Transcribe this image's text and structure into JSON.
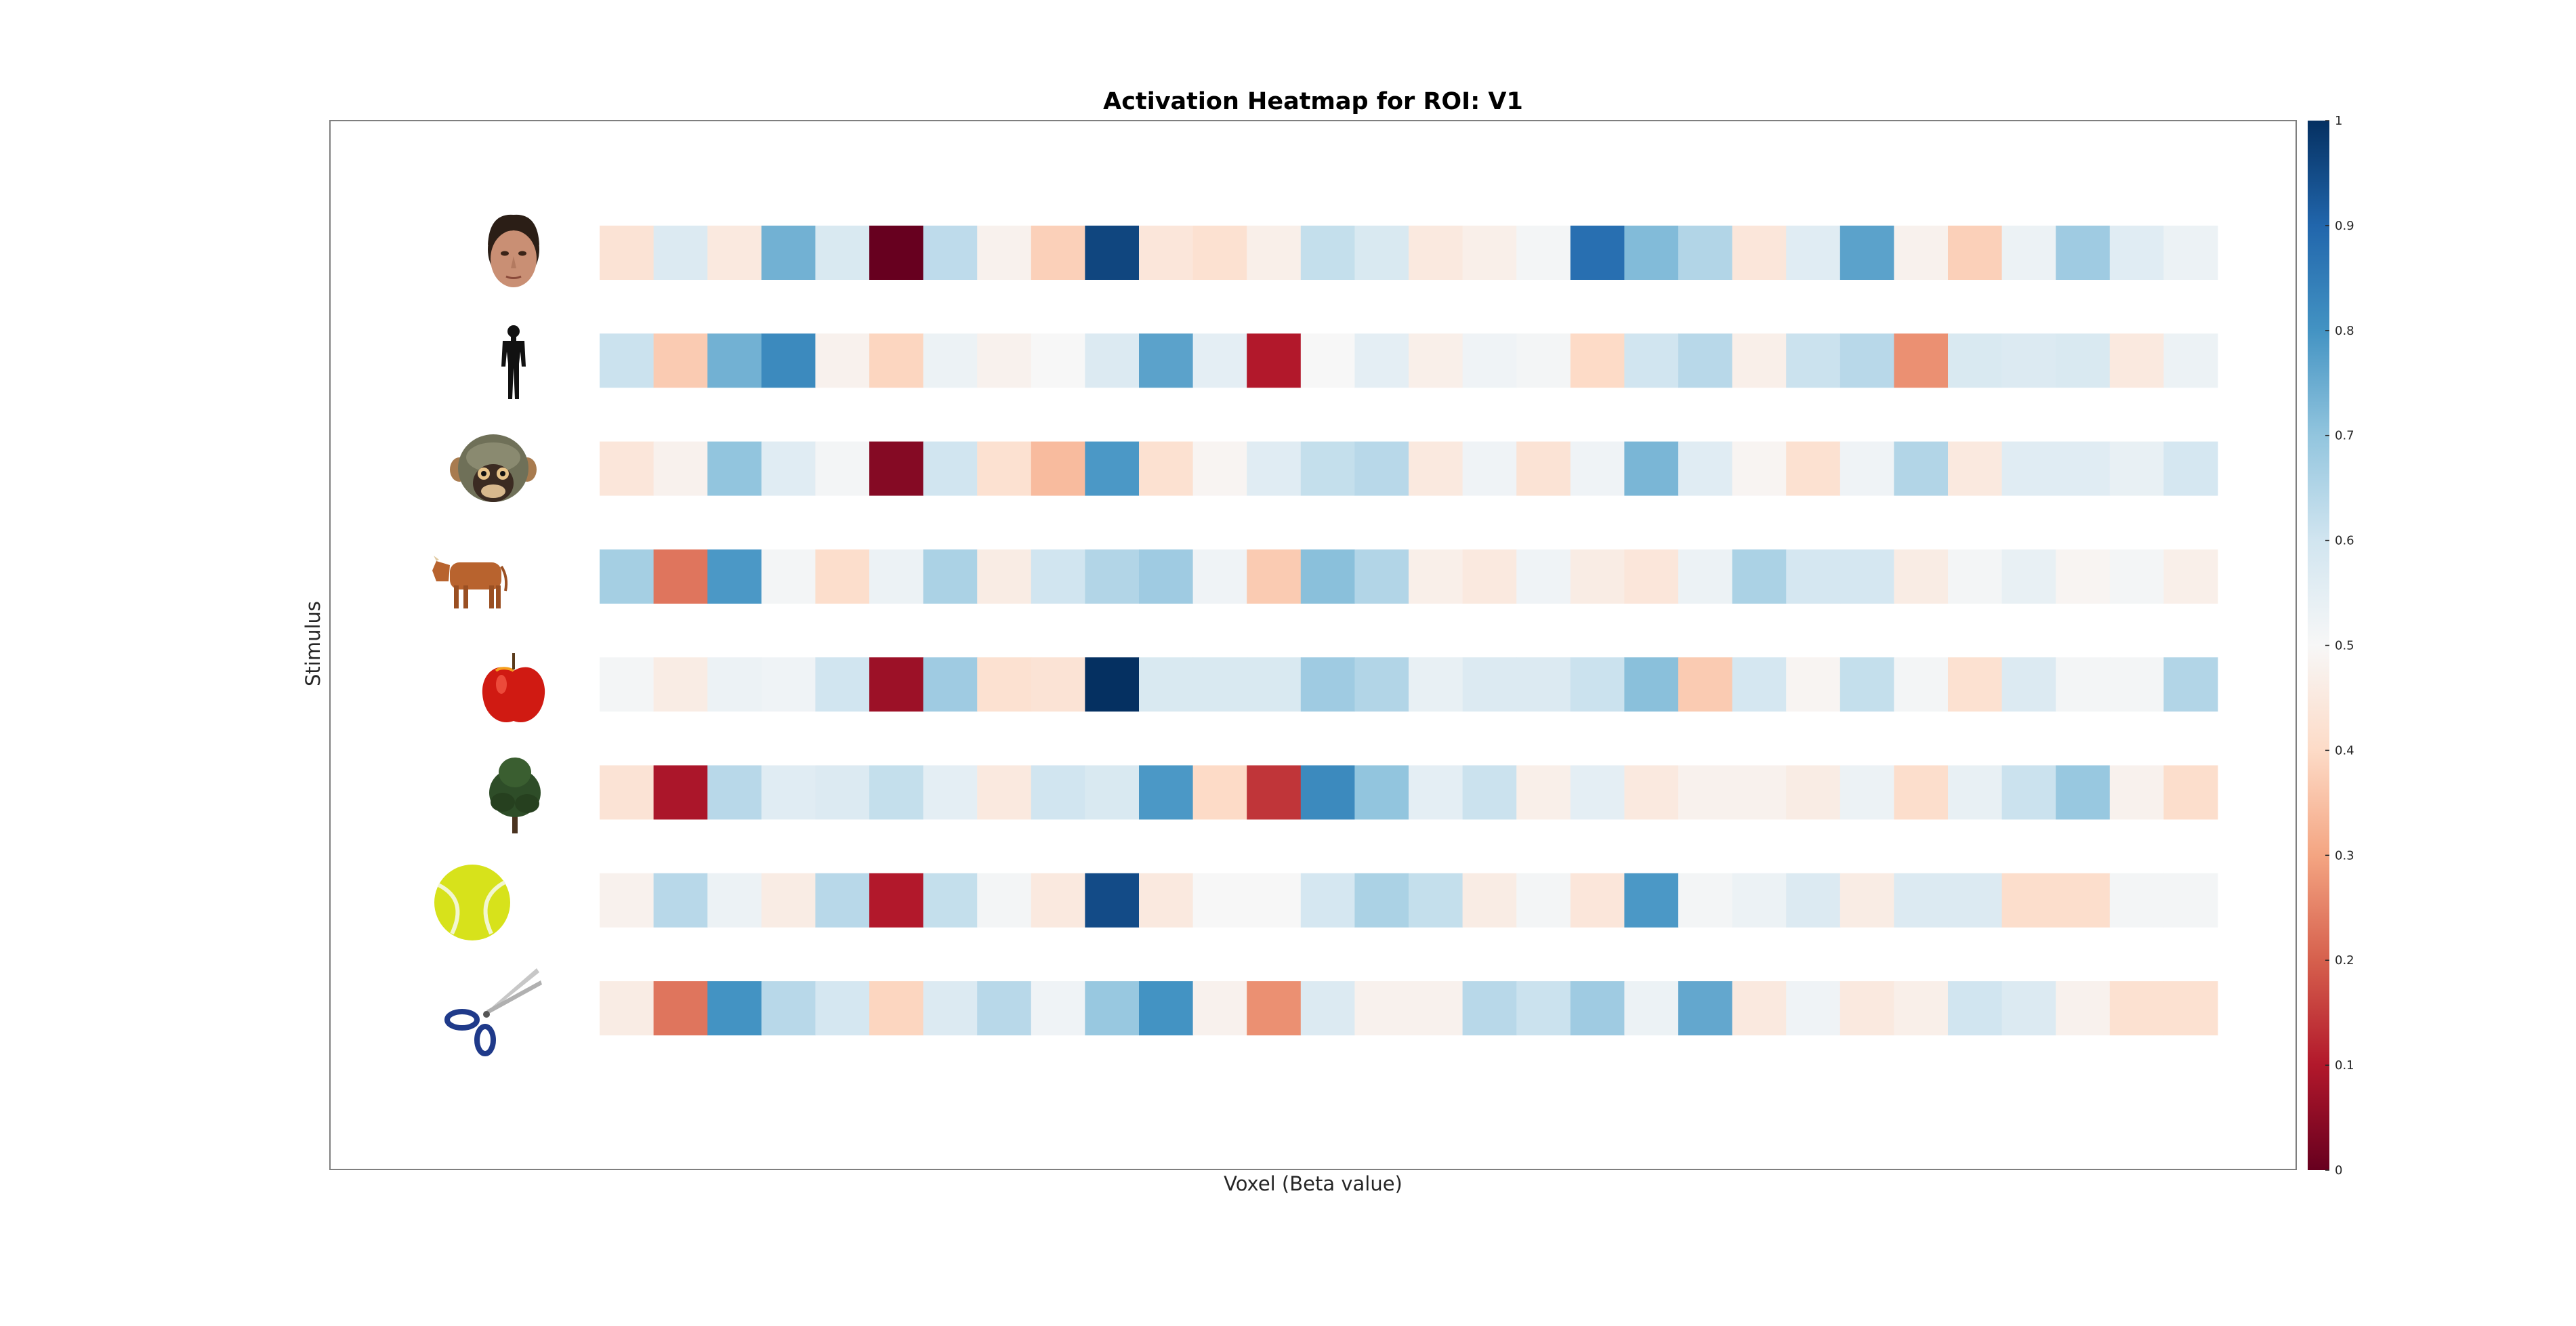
{
  "chart_data": {
    "type": "heatmap",
    "title": "Activation Heatmap for ROI: V1",
    "xlabel": "Voxel (Beta value)",
    "ylabel": "Stimulus",
    "colormap": "RdBu",
    "colorbar": {
      "range": [
        0,
        1
      ],
      "ticks": [
        "0",
        "0.1",
        "0.2",
        "0.3",
        "0.4",
        "0.5",
        "0.6",
        "0.7",
        "0.8",
        "0.9",
        "1"
      ]
    },
    "row_icons": [
      "face-icon",
      "body-silhouette-icon",
      "monkey-face-icon",
      "cow-icon",
      "apple-icon",
      "tree-icon",
      "tennis-ball-icon",
      "scissors-icon"
    ],
    "values": [
      [
        0.43,
        0.57,
        0.45,
        0.74,
        0.58,
        0.0,
        0.63,
        0.48,
        0.38,
        0.96,
        0.44,
        0.42,
        0.47,
        0.62,
        0.58,
        0.45,
        0.47,
        0.51,
        0.88,
        0.72,
        0.65,
        0.44,
        0.56,
        0.77,
        0.48,
        0.38,
        0.53,
        0.68,
        0.56,
        0.53
      ],
      [
        0.61,
        0.37,
        0.74,
        0.82,
        0.48,
        0.39,
        0.53,
        0.48,
        0.5,
        0.57,
        0.77,
        0.55,
        0.1,
        0.5,
        0.55,
        0.47,
        0.52,
        0.51,
        0.4,
        0.6,
        0.64,
        0.47,
        0.61,
        0.64,
        0.27,
        0.58,
        0.57,
        0.58,
        0.45,
        0.53
      ],
      [
        0.44,
        0.48,
        0.7,
        0.56,
        0.51,
        0.04,
        0.6,
        0.42,
        0.34,
        0.79,
        0.42,
        0.49,
        0.56,
        0.62,
        0.64,
        0.45,
        0.52,
        0.43,
        0.52,
        0.73,
        0.56,
        0.49,
        0.42,
        0.52,
        0.65,
        0.45,
        0.56,
        0.56,
        0.54,
        0.59
      ],
      [
        0.67,
        0.23,
        0.79,
        0.51,
        0.41,
        0.53,
        0.66,
        0.46,
        0.6,
        0.65,
        0.68,
        0.52,
        0.37,
        0.71,
        0.65,
        0.47,
        0.45,
        0.52,
        0.46,
        0.44,
        0.53,
        0.66,
        0.59,
        0.59,
        0.46,
        0.51,
        0.54,
        0.49,
        0.51,
        0.47
      ],
      [
        0.51,
        0.46,
        0.53,
        0.52,
        0.6,
        0.07,
        0.68,
        0.42,
        0.43,
        1.0,
        0.58,
        0.58,
        0.58,
        0.68,
        0.65,
        0.54,
        0.57,
        0.57,
        0.61,
        0.71,
        0.37,
        0.59,
        0.49,
        0.62,
        0.51,
        0.42,
        0.57,
        0.51,
        0.51,
        0.65
      ],
      [
        0.43,
        0.09,
        0.64,
        0.56,
        0.57,
        0.62,
        0.55,
        0.45,
        0.6,
        0.58,
        0.79,
        0.4,
        0.14,
        0.82,
        0.7,
        0.55,
        0.61,
        0.47,
        0.55,
        0.45,
        0.48,
        0.48,
        0.46,
        0.53,
        0.41,
        0.54,
        0.61,
        0.69,
        0.48,
        0.41
      ],
      [
        0.48,
        0.64,
        0.53,
        0.46,
        0.64,
        0.1,
        0.62,
        0.51,
        0.45,
        0.95,
        0.45,
        0.5,
        0.5,
        0.59,
        0.66,
        0.62,
        0.46,
        0.51,
        0.44,
        0.79,
        0.51,
        0.53,
        0.57,
        0.46,
        0.57,
        0.57,
        0.41,
        0.41,
        0.51,
        0.51
      ],
      [
        0.46,
        0.23,
        0.8,
        0.64,
        0.59,
        0.39,
        0.57,
        0.64,
        0.52,
        0.69,
        0.8,
        0.48,
        0.27,
        0.57,
        0.48,
        0.48,
        0.64,
        0.61,
        0.68,
        0.53,
        0.76,
        0.45,
        0.52,
        0.45,
        0.47,
        0.6,
        0.57,
        0.48,
        0.42,
        0.42
      ]
    ]
  }
}
